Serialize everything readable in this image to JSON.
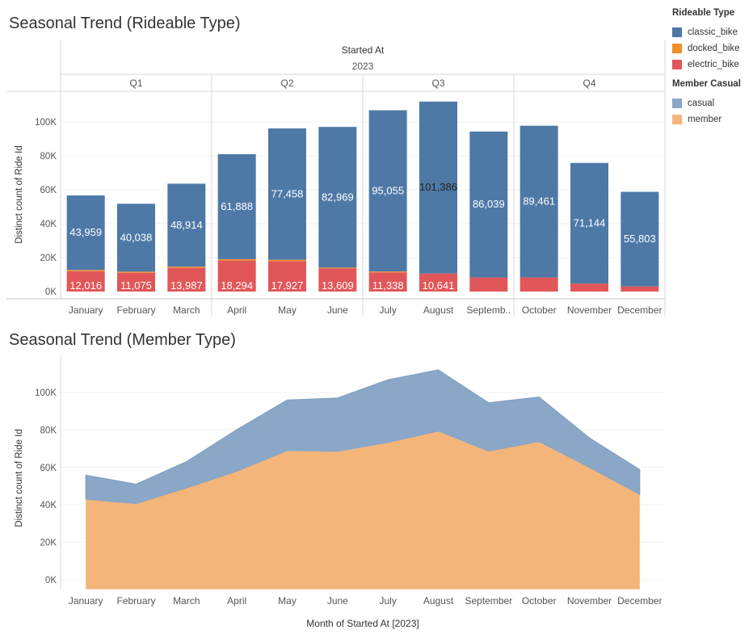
{
  "chart_data": [
    {
      "type": "bar",
      "stacked": true,
      "title": "Seasonal Trend (Rideable Type)",
      "header": {
        "label": "Started At",
        "year": "2023"
      },
      "quarters": [
        {
          "label": "Q1",
          "months": 3
        },
        {
          "label": "Q2",
          "months": 3
        },
        {
          "label": "Q3",
          "months": 3
        },
        {
          "label": "Q4",
          "months": 3
        }
      ],
      "categories": [
        "January",
        "February",
        "March",
        "April",
        "May",
        "June",
        "July",
        "August",
        "Septemb..",
        "October",
        "November",
        "December"
      ],
      "ylabel": "Distinct count of Ride Id",
      "ylim": [
        0,
        120000
      ],
      "yticks": [
        0,
        20000,
        40000,
        60000,
        80000,
        100000
      ],
      "ytick_labels": [
        "0K",
        "20K",
        "40K",
        "60K",
        "80K",
        "100K"
      ],
      "series": [
        {
          "name": "electric_bike",
          "color": "#e15759",
          "values": [
            12016,
            11075,
            13987,
            18294,
            17927,
            13609,
            11338,
            10641,
            8300,
            8300,
            4700,
            3000
          ],
          "labels": [
            "12,016",
            "11,075",
            "13,987",
            "18,294",
            "17,927",
            "13,609",
            "11,338",
            "10,641",
            "",
            "",
            "",
            ""
          ]
        },
        {
          "name": "docked_bike",
          "color": "#f28e2b",
          "values": [
            700,
            650,
            700,
            800,
            800,
            500,
            500,
            0,
            0,
            0,
            0,
            0
          ],
          "labels": [
            "",
            "",
            "",
            "",
            "",
            "",
            "",
            "",
            "",
            "",
            "",
            ""
          ]
        },
        {
          "name": "classic_bike",
          "color": "#4e79a7",
          "values": [
            43959,
            40038,
            48914,
            61888,
            77458,
            82969,
            95055,
            101386,
            86039,
            89461,
            71144,
            55803
          ],
          "labels": [
            "43,959",
            "40,038",
            "48,914",
            "61,888",
            "77,458",
            "82,969",
            "95,055",
            "101,386",
            "86,039",
            "89,461",
            "71,144",
            "55,803"
          ]
        }
      ],
      "grid": true
    },
    {
      "type": "area",
      "stacked": true,
      "title": "Seasonal Trend (Member Type)",
      "categories": [
        "January",
        "February",
        "March",
        "April",
        "May",
        "June",
        "July",
        "August",
        "September",
        "October",
        "November",
        "December"
      ],
      "xlabel": "Month of Started At [2023]",
      "ylabel": "Distinct count of Ride Id",
      "ylim": [
        -5000,
        120000
      ],
      "yticks": [
        0,
        20000,
        40000,
        60000,
        80000,
        100000
      ],
      "ytick_labels": [
        "0K",
        "20K",
        "40K",
        "60K",
        "80K",
        "100K"
      ],
      "series": [
        {
          "name": "member",
          "color": "#f4b57a",
          "values": [
            43000,
            40700,
            49000,
            57900,
            69000,
            68600,
            73300,
            79400,
            68700,
            73800,
            60000,
            45500
          ]
        },
        {
          "name": "casual",
          "color": "#8aa7c7",
          "values": [
            12900,
            10400,
            14100,
            22300,
            27000,
            28500,
            33500,
            32700,
            25800,
            23800,
            15800,
            13300
          ]
        }
      ],
      "grid": true
    }
  ],
  "legend": {
    "rideable": {
      "title": "Rideable Type",
      "items": [
        {
          "label": "classic_bike",
          "color": "#4e79a7"
        },
        {
          "label": "docked_bike",
          "color": "#f28e2b"
        },
        {
          "label": "electric_bike",
          "color": "#e15759"
        }
      ]
    },
    "member": {
      "title": "Member Casual",
      "items": [
        {
          "label": "casual",
          "color": "#8aa7c7"
        },
        {
          "label": "member",
          "color": "#f4b57a"
        }
      ]
    }
  }
}
